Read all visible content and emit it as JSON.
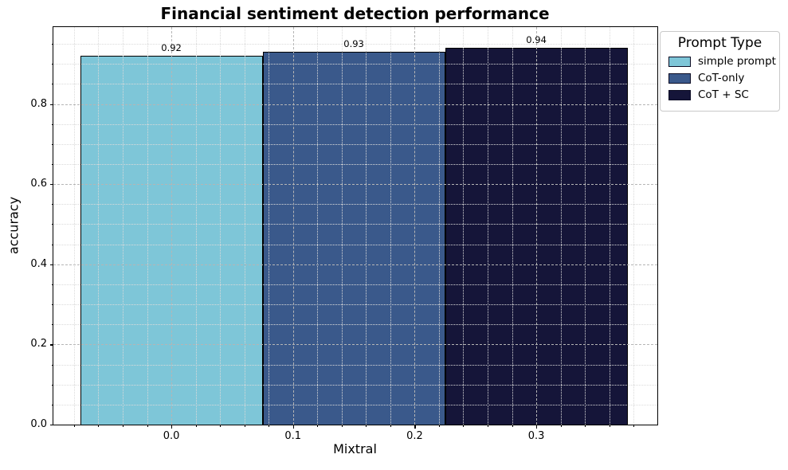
{
  "chart_data": {
    "type": "bar",
    "title": "Financial sentiment detection performance",
    "xlabel": "Mixtral",
    "ylabel": "accuracy",
    "legend_title": "Prompt Type",
    "legend_position": "upper-right, outside axes",
    "xlim": [
      -0.097,
      0.3995
    ],
    "ylim": [
      0,
      0.992
    ],
    "x_major_ticks": [
      0.0,
      0.1,
      0.2,
      0.3
    ],
    "x_minor_step": 0.02,
    "y_major_ticks": [
      0.0,
      0.2,
      0.4,
      0.6,
      0.8
    ],
    "y_minor_step": 0.05,
    "bar_width": 0.15,
    "grid": {
      "major_style": "dashed",
      "minor_style": "dotted",
      "drawn_above_bars": true
    },
    "series": [
      {
        "name": "simple prompt",
        "x": 0.0,
        "value": 0.92,
        "value_label": "0.92",
        "color": "#7ec6d8"
      },
      {
        "name": "CoT-only",
        "x": 0.15,
        "value": 0.93,
        "value_label": "0.93",
        "color": "#3a598b"
      },
      {
        "name": "CoT + SC",
        "x": 0.3,
        "value": 0.94,
        "value_label": "0.94",
        "color": "#151539"
      }
    ],
    "colors": {
      "axes_edge": "#000000",
      "bar_edge": "#000000",
      "grid_major": "#b5b5b5",
      "grid_minor": "#dadada",
      "text": "#000000",
      "legend_border": "#c9c9c9",
      "background": "#ffffff"
    }
  }
}
